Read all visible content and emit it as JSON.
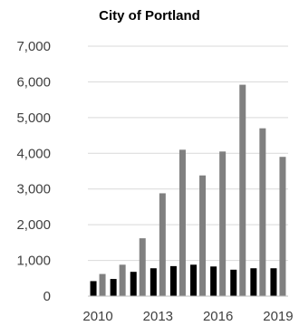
{
  "chart_data": {
    "type": "bar",
    "title": "City of Portland",
    "xlabel": "",
    "ylabel": "",
    "x": [
      2010,
      2011,
      2012,
      2013,
      2014,
      2015,
      2016,
      2017,
      2018,
      2019
    ],
    "x_tick_labels": [
      "2010",
      "2013",
      "2016",
      "2019"
    ],
    "y_tick_labels": [
      "0",
      "1,000",
      "2,000",
      "3,000",
      "4,000",
      "5,000",
      "6,000",
      "7,000"
    ],
    "ylim": [
      0,
      7000
    ],
    "grid": true,
    "legend": "none",
    "series": [
      {
        "color": "#000000",
        "values": [
          420,
          480,
          680,
          780,
          840,
          880,
          830,
          740,
          780,
          780
        ]
      },
      {
        "color": "#808080",
        "values": [
          620,
          880,
          1620,
          2880,
          4100,
          3380,
          4050,
          5920,
          4700,
          3900
        ]
      }
    ]
  }
}
